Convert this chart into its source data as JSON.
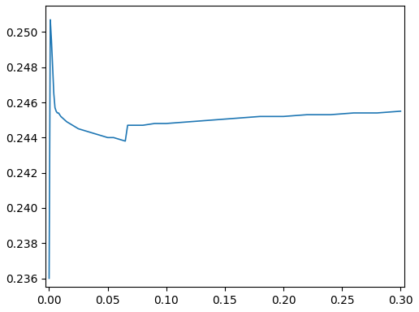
{
  "line_color": "#1f77b4",
  "background_color": "#ffffff",
  "xlim": [
    -0.003,
    0.303
  ],
  "ylim": [
    0.2355,
    0.2515
  ],
  "xticks": [
    0.0,
    0.05,
    0.1,
    0.15,
    0.2,
    0.25,
    0.3
  ],
  "yticks": [
    0.236,
    0.238,
    0.24,
    0.242,
    0.244,
    0.246,
    0.248,
    0.25
  ],
  "x": [
    0.0,
    0.001,
    0.002,
    0.003,
    0.004,
    0.005,
    0.006,
    0.007,
    0.008,
    0.009,
    0.01,
    0.015,
    0.02,
    0.025,
    0.03,
    0.035,
    0.04,
    0.045,
    0.05,
    0.055,
    0.06,
    0.065,
    0.067,
    0.07,
    0.075,
    0.08,
    0.09,
    0.1,
    0.12,
    0.14,
    0.16,
    0.18,
    0.2,
    0.22,
    0.24,
    0.26,
    0.28,
    0.3
  ],
  "y": [
    0.236,
    0.2507,
    0.2495,
    0.248,
    0.2465,
    0.2457,
    0.2455,
    0.2454,
    0.2454,
    0.2453,
    0.2452,
    0.2449,
    0.2447,
    0.2445,
    0.2444,
    0.2443,
    0.2442,
    0.2441,
    0.244,
    0.244,
    0.2439,
    0.2438,
    0.2447,
    0.2447,
    0.2447,
    0.2447,
    0.2448,
    0.2448,
    0.2449,
    0.245,
    0.2451,
    0.2452,
    0.2452,
    0.2453,
    0.2453,
    0.2454,
    0.2454,
    0.2455
  ]
}
